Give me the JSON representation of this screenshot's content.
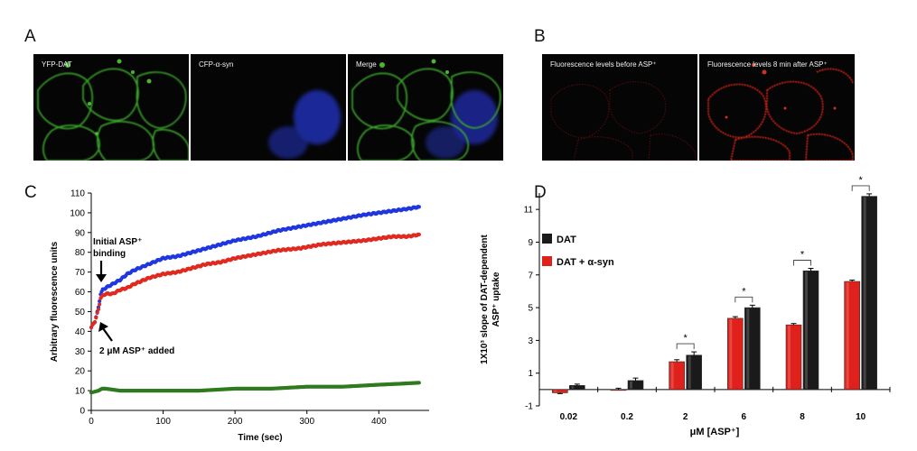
{
  "panels": {
    "a": {
      "letter": "A",
      "images": [
        {
          "label": "YFP-DAT",
          "channel": "green"
        },
        {
          "label": "CFP-α-syn",
          "channel": "blue"
        },
        {
          "label": "Merge",
          "channel": "merge"
        }
      ]
    },
    "b": {
      "letter": "B",
      "images": [
        {
          "label": "Fluorescence levels before ASP⁺",
          "channel": "red-dim"
        },
        {
          "label": "Fluorescence levels 8 min after ASP⁺",
          "channel": "red-bright"
        }
      ]
    },
    "c": {
      "letter": "C"
    },
    "d": {
      "letter": "D"
    }
  },
  "chart_data": [
    {
      "id": "C",
      "type": "scatter",
      "xlabel": "Time (sec)",
      "ylabel": "Arbitrary fluorescence units",
      "xlim": [
        0,
        470
      ],
      "ylim": [
        0,
        110
      ],
      "x_ticks": [
        0,
        100,
        200,
        300,
        400
      ],
      "y_ticks": [
        0,
        10,
        20,
        30,
        40,
        50,
        60,
        70,
        80,
        90,
        100,
        110
      ],
      "grid": false,
      "series": [
        {
          "color": "#1f36e0",
          "x": [
            0,
            5,
            10,
            13,
            16,
            20,
            30,
            40,
            50,
            60,
            80,
            100,
            120,
            140,
            160,
            180,
            200,
            230,
            260,
            290,
            320,
            350,
            380,
            400,
            420,
            440,
            456
          ],
          "values": [
            42,
            45,
            52,
            59,
            61,
            62,
            64,
            66,
            69,
            71,
            74,
            77,
            78,
            80,
            82,
            84,
            86,
            88,
            91,
            93,
            95,
            97,
            99,
            100,
            101,
            102,
            103
          ]
        },
        {
          "color": "#e02a1f",
          "x": [
            0,
            5,
            10,
            13,
            16,
            20,
            30,
            40,
            50,
            60,
            80,
            100,
            120,
            140,
            160,
            180,
            200,
            230,
            260,
            290,
            320,
            350,
            380,
            400,
            420,
            440,
            456
          ],
          "values": [
            42,
            45,
            51,
            57,
            58,
            59,
            59,
            61,
            62,
            64,
            67,
            69,
            70,
            72,
            74,
            75,
            77,
            79,
            81,
            82,
            84,
            85,
            86,
            87,
            88,
            88,
            89
          ]
        },
        {
          "color": "#2f7a1f",
          "x": [
            0,
            10,
            15,
            20,
            40,
            60,
            100,
            150,
            200,
            250,
            300,
            350,
            400,
            430,
            456
          ],
          "values": [
            9,
            10,
            11,
            11,
            10,
            10,
            10,
            10,
            11,
            11,
            12,
            12,
            13,
            13.5,
            14
          ]
        }
      ],
      "annotations": [
        {
          "text_lines": [
            "Initial ASP⁺",
            "binding"
          ]
        },
        {
          "text": "2 μM ASP⁺ added"
        }
      ]
    },
    {
      "id": "D",
      "type": "bar",
      "categories": [
        "0.02",
        "0.2",
        "2",
        "6",
        "8",
        "10"
      ],
      "xlabel": "μM [ASP⁺]",
      "ylabel_lines": [
        "1X10³ slope of DAT-dependent",
        "ASP⁺ uptake"
      ],
      "ylim": [
        -1,
        12
      ],
      "y_ticks": [
        -1,
        1,
        3,
        5,
        7,
        9,
        11
      ],
      "grid": false,
      "legend_position": "top-left",
      "series": [
        {
          "name": "DAT",
          "color": "#1a1a1a",
          "values": [
            0.25,
            0.55,
            2.1,
            5.0,
            7.25,
            11.8
          ],
          "errors": [
            0.08,
            0.15,
            0.2,
            0.15,
            0.15,
            0.15
          ]
        },
        {
          "name": "DAT + α-syn",
          "color": "#e0201a",
          "values": [
            -0.2,
            0.0,
            1.7,
            4.35,
            3.95,
            6.6
          ],
          "errors": [
            0.05,
            0.08,
            0.12,
            0.1,
            0.08,
            0.08
          ]
        }
      ],
      "significance": [
        "",
        "",
        "*",
        "*",
        "*",
        "*"
      ]
    }
  ]
}
